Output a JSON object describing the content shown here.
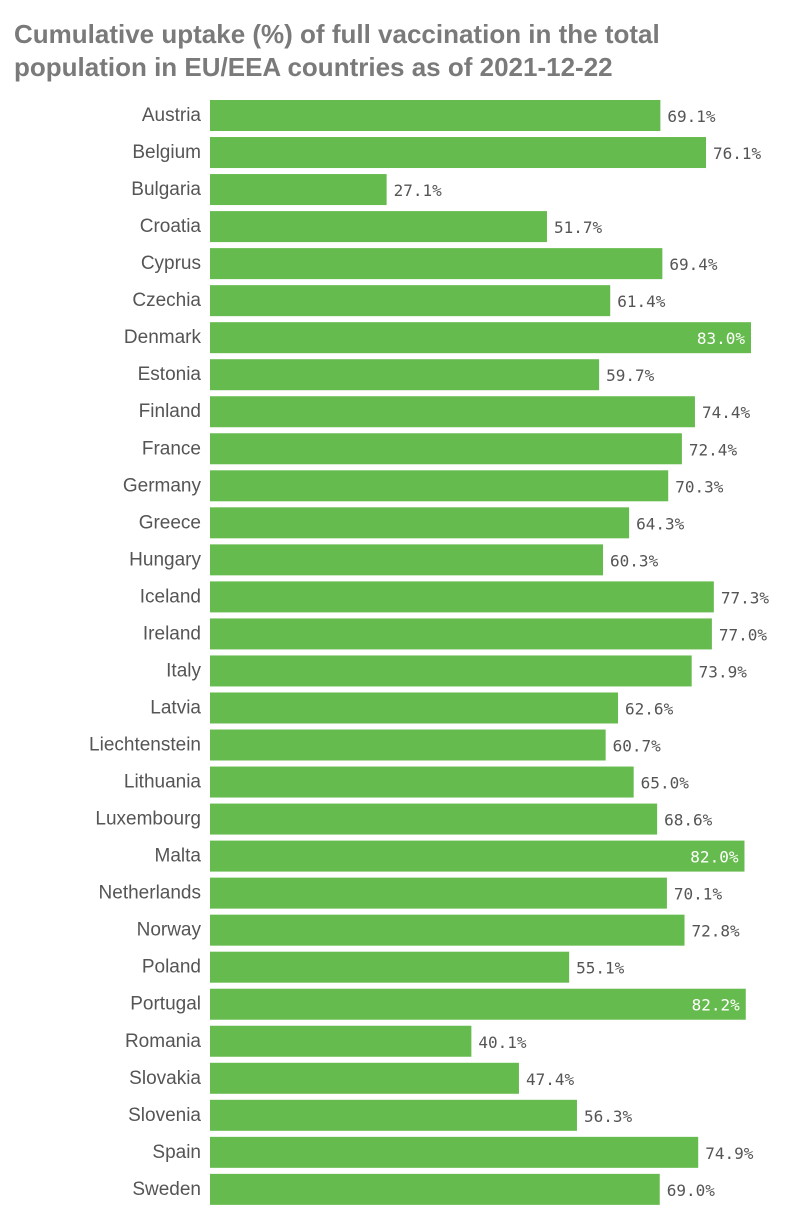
{
  "chart_data": {
    "type": "bar",
    "orientation": "horizontal",
    "title": "Cumulative uptake (%) of full vaccination in the total population in EU/EEA countries as of 2021-12-22",
    "categories": [
      "Austria",
      "Belgium",
      "Bulgaria",
      "Croatia",
      "Cyprus",
      "Czechia",
      "Denmark",
      "Estonia",
      "Finland",
      "France",
      "Germany",
      "Greece",
      "Hungary",
      "Iceland",
      "Ireland",
      "Italy",
      "Latvia",
      "Liechtenstein",
      "Lithuania",
      "Luxembourg",
      "Malta",
      "Netherlands",
      "Norway",
      "Poland",
      "Portugal",
      "Romania",
      "Slovakia",
      "Slovenia",
      "Spain",
      "Sweden"
    ],
    "values": [
      69.1,
      76.1,
      27.1,
      51.7,
      69.4,
      61.4,
      83.0,
      59.7,
      74.4,
      72.4,
      70.3,
      64.3,
      60.3,
      77.3,
      77.0,
      73.9,
      62.6,
      60.7,
      65.0,
      68.6,
      82.0,
      70.1,
      72.8,
      55.1,
      82.2,
      40.1,
      47.4,
      56.3,
      74.9,
      69.0
    ],
    "value_labels": [
      "69.1%",
      "76.1%",
      "27.1%",
      "51.7%",
      "69.4%",
      "61.4%",
      "83.0%",
      "59.7%",
      "74.4%",
      "72.4%",
      "70.3%",
      "64.3%",
      "60.3%",
      "77.3%",
      "77.0%",
      "73.9%",
      "62.6%",
      "60.7%",
      "65.0%",
      "68.6%",
      "82.0%",
      "70.1%",
      "72.8%",
      "55.1%",
      "82.2%",
      "40.1%",
      "47.4%",
      "56.3%",
      "74.9%",
      "69.0%"
    ],
    "xlim": [
      0,
      83
    ],
    "grid": false,
    "legend": "none",
    "colors": {
      "bar": "#66bb4e",
      "label_outside": "#555555",
      "label_inside": "#ffffff",
      "category_text": "#555555",
      "title": "#7a7a7a"
    }
  }
}
